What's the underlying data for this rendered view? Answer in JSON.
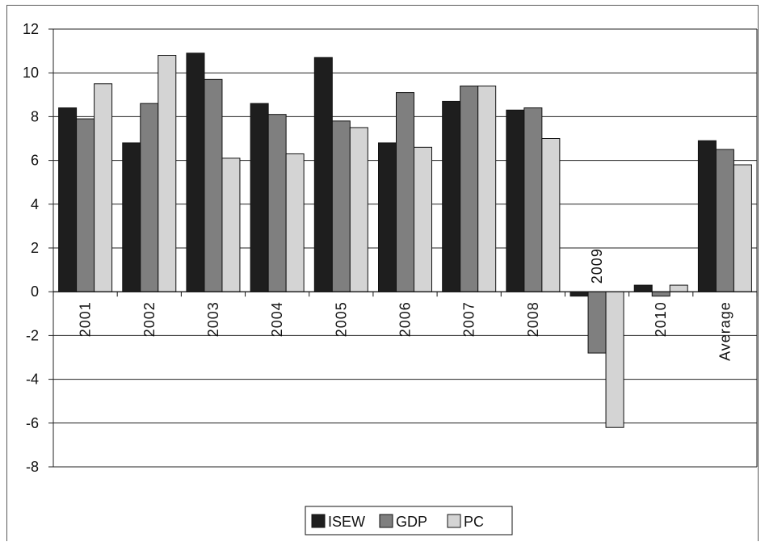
{
  "chart_data": {
    "type": "bar",
    "title": "",
    "xlabel": "",
    "ylabel": "",
    "ylim": [
      -8,
      12
    ],
    "yticks": [
      12,
      10,
      8,
      6,
      4,
      2,
      0,
      -2,
      -4,
      -6,
      -8
    ],
    "grid": true,
    "legend_position": "bottom",
    "categories": [
      "2001",
      "2002",
      "2003",
      "2004",
      "2005",
      "2006",
      "2007",
      "2008",
      "2009",
      "2010",
      "Average"
    ],
    "series": [
      {
        "name": "ISEW",
        "color": "#1e1e1e",
        "values": [
          8.4,
          6.8,
          10.9,
          8.6,
          10.7,
          6.8,
          8.7,
          8.3,
          -0.2,
          0.3,
          6.9
        ]
      },
      {
        "name": "GDP",
        "color": "#7f7f7f",
        "values": [
          7.9,
          8.6,
          9.7,
          8.1,
          7.8,
          9.1,
          9.4,
          8.4,
          -2.8,
          -0.2,
          6.5
        ]
      },
      {
        "name": "PC",
        "color": "#d4d4d4",
        "values": [
          9.5,
          10.8,
          6.1,
          6.3,
          7.5,
          6.6,
          9.4,
          7.0,
          -6.2,
          0.3,
          5.8
        ]
      }
    ]
  }
}
